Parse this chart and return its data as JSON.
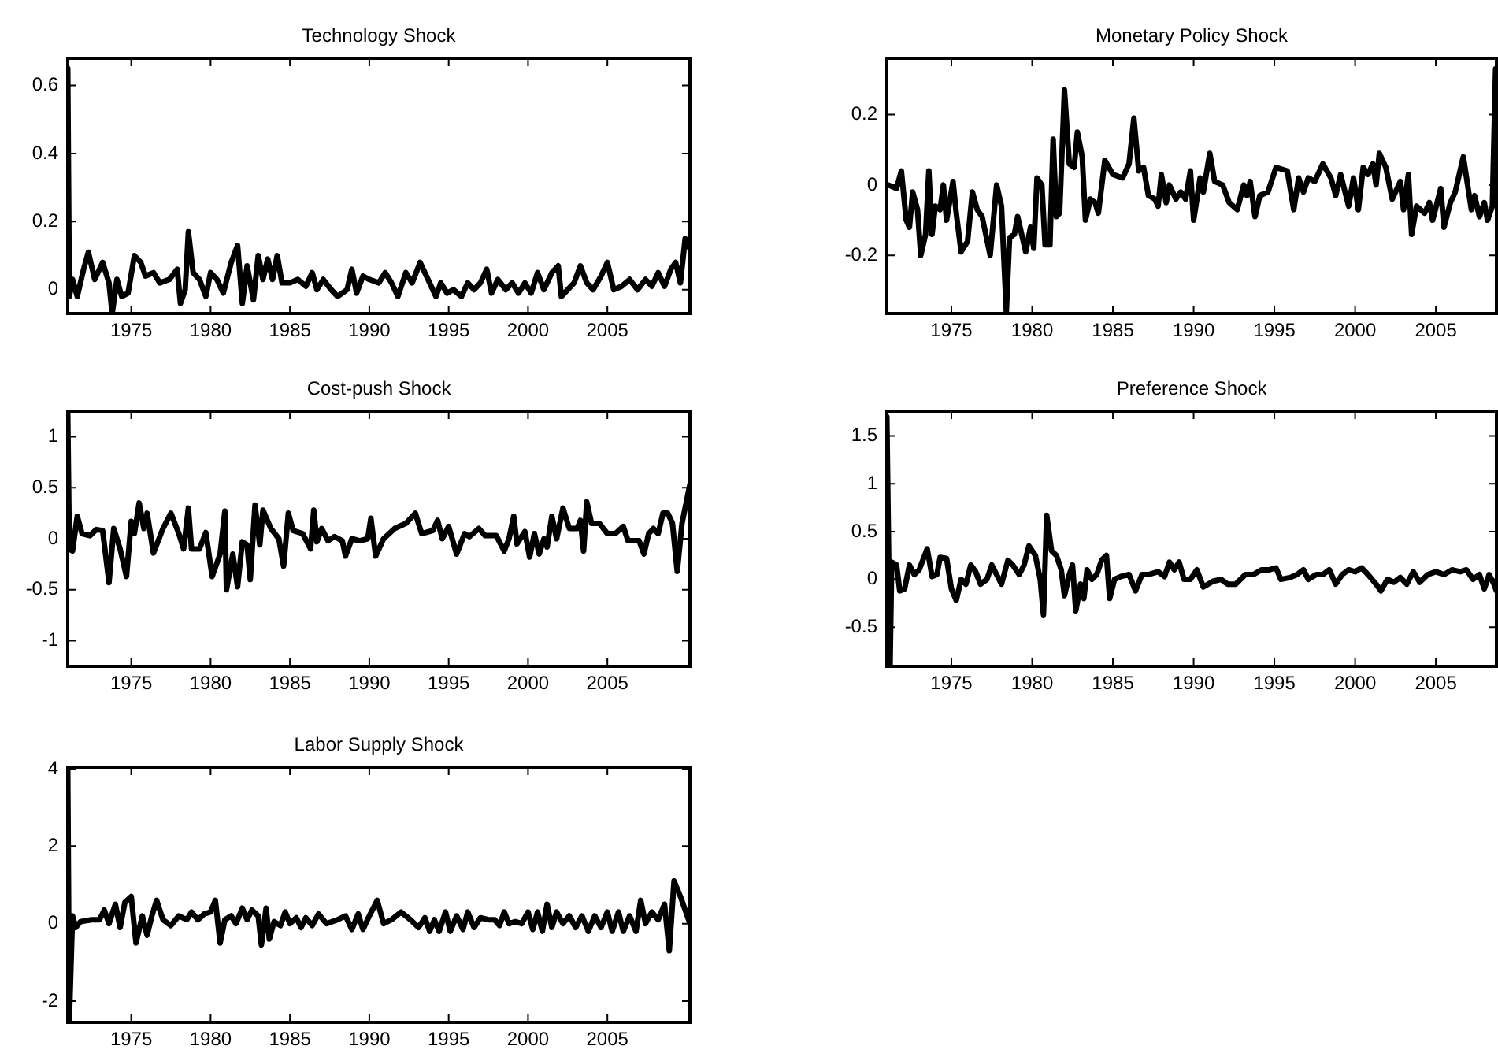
{
  "chart_data": [
    {
      "type": "line",
      "title": "Technology Shock",
      "xlim": [
        1971,
        2010.2
      ],
      "ylim": [
        -0.07,
        0.68
      ],
      "xticks": [
        1975,
        1980,
        1985,
        1990,
        1995,
        2000,
        2005
      ],
      "yticks": [
        0,
        0.2,
        0.4,
        0.6
      ],
      "grid": false,
      "line_style": "solid",
      "x": [
        1971.0,
        1971.1,
        1971.3,
        1971.6,
        1972.0,
        1972.3,
        1972.7,
        1973.2,
        1973.6,
        1973.8,
        1974.1,
        1974.4,
        1974.8,
        1975.2,
        1975.6,
        1975.9,
        1976.4,
        1976.8,
        1977.4,
        1977.9,
        1978.1,
        1978.4,
        1978.6,
        1978.9,
        1979.3,
        1979.7,
        1980.0,
        1980.4,
        1980.8,
        1981.3,
        1981.7,
        1982.0,
        1982.3,
        1982.7,
        1983.0,
        1983.3,
        1983.6,
        1983.9,
        1984.2,
        1984.5,
        1985.0,
        1985.5,
        1986.0,
        1986.4,
        1986.7,
        1987.1,
        1987.6,
        1988.0,
        1988.6,
        1988.9,
        1989.2,
        1989.6,
        1990.0,
        1990.6,
        1991.0,
        1991.4,
        1991.8,
        1992.3,
        1992.7,
        1993.2,
        1993.6,
        1994.2,
        1994.5,
        1994.9,
        1995.3,
        1995.8,
        1996.2,
        1996.6,
        1997.0,
        1997.4,
        1997.7,
        1998.1,
        1998.6,
        1999.0,
        1999.4,
        1999.8,
        2000.2,
        2000.6,
        2001.0,
        2001.5,
        2001.9,
        2002.1,
        2002.5,
        2002.9,
        2003.3,
        2003.7,
        2004.1,
        2004.6,
        2005.0,
        2005.4,
        2005.9,
        2006.4,
        2006.9,
        2007.4,
        2007.8,
        2008.2,
        2008.6,
        2009.0,
        2009.3,
        2009.6,
        2009.9,
        2010.2
      ],
      "series": [
        {
          "color": "#000000",
          "values": [
            0.65,
            -0.02,
            0.03,
            -0.02,
            0.06,
            0.11,
            0.03,
            0.08,
            0.02,
            -0.07,
            0.03,
            -0.02,
            -0.01,
            0.1,
            0.08,
            0.04,
            0.05,
            0.02,
            0.03,
            0.06,
            -0.04,
            0.0,
            0.17,
            0.05,
            0.03,
            -0.02,
            0.05,
            0.03,
            -0.01,
            0.08,
            0.13,
            -0.04,
            0.07,
            -0.03,
            0.1,
            0.03,
            0.09,
            0.03,
            0.1,
            0.02,
            0.02,
            0.03,
            0.01,
            0.05,
            0.0,
            0.03,
            0.0,
            -0.02,
            0.0,
            0.06,
            -0.01,
            0.04,
            0.03,
            0.02,
            0.05,
            0.02,
            -0.02,
            0.05,
            0.02,
            0.08,
            0.04,
            -0.02,
            0.02,
            -0.01,
            0.0,
            -0.02,
            0.02,
            0.0,
            0.02,
            0.06,
            -0.01,
            0.03,
            0.0,
            0.02,
            -0.01,
            0.02,
            -0.01,
            0.05,
            0.0,
            0.05,
            0.07,
            -0.02,
            0.0,
            0.02,
            0.07,
            0.02,
            0.0,
            0.04,
            0.08,
            0.0,
            0.01,
            0.03,
            0.0,
            0.03,
            0.01,
            0.05,
            0.01,
            0.06,
            0.08,
            0.02,
            0.15,
            0.12
          ]
        }
      ]
    },
    {
      "type": "line",
      "title": "Monetary Policy Shock",
      "xlim": [
        1971,
        2008.75
      ],
      "ylim": [
        -0.365,
        0.36
      ],
      "xticks": [
        1975,
        1980,
        1985,
        1990,
        1995,
        2000,
        2005
      ],
      "yticks": [
        -0.2,
        0,
        0.2
      ],
      "grid": false,
      "line_style": "solid",
      "x": [
        1971.1,
        1971.6,
        1971.9,
        1972.2,
        1972.4,
        1972.6,
        1972.9,
        1973.1,
        1973.4,
        1973.6,
        1973.8,
        1974.0,
        1974.3,
        1974.5,
        1974.7,
        1975.1,
        1975.3,
        1975.6,
        1976.0,
        1976.3,
        1976.6,
        1976.9,
        1977.4,
        1977.8,
        1978.1,
        1978.4,
        1978.6,
        1978.9,
        1979.1,
        1979.4,
        1979.6,
        1979.9,
        1980.1,
        1980.3,
        1980.6,
        1980.8,
        1981.1,
        1981.3,
        1981.5,
        1981.7,
        1982.0,
        1982.3,
        1982.6,
        1982.8,
        1983.1,
        1983.3,
        1983.6,
        1983.9,
        1984.1,
        1984.5,
        1985.0,
        1985.6,
        1986.0,
        1986.3,
        1986.6,
        1986.9,
        1987.2,
        1987.6,
        1987.8,
        1988.0,
        1988.3,
        1988.5,
        1988.9,
        1989.2,
        1989.5,
        1989.8,
        1990.0,
        1990.4,
        1990.6,
        1991.0,
        1991.3,
        1991.8,
        1992.2,
        1992.7,
        1993.1,
        1993.3,
        1993.5,
        1993.8,
        1994.1,
        1994.6,
        1995.1,
        1995.8,
        1996.2,
        1996.5,
        1996.8,
        1997.1,
        1997.5,
        1998.0,
        1998.5,
        1998.8,
        1999.1,
        1999.6,
        1999.9,
        2000.2,
        2000.5,
        2000.8,
        2001.1,
        2001.3,
        2001.5,
        2001.9,
        2002.3,
        2002.8,
        2003.0,
        2003.3,
        2003.5,
        2003.8,
        2004.3,
        2004.6,
        2004.8,
        2005.3,
        2005.5,
        2005.9,
        2006.2,
        2006.7,
        2007.2,
        2007.4,
        2007.7,
        2008.0,
        2008.2,
        2008.5,
        2008.7
      ],
      "series": [
        {
          "color": "#000000",
          "values": [
            0.0,
            -0.01,
            0.04,
            -0.1,
            -0.12,
            -0.02,
            -0.07,
            -0.2,
            -0.14,
            0.04,
            -0.14,
            -0.06,
            -0.07,
            0.0,
            -0.1,
            0.01,
            -0.08,
            -0.19,
            -0.16,
            -0.02,
            -0.07,
            -0.09,
            -0.2,
            0.0,
            -0.06,
            -0.36,
            -0.15,
            -0.14,
            -0.09,
            -0.15,
            -0.19,
            -0.12,
            -0.18,
            0.02,
            0.0,
            -0.17,
            -0.17,
            0.13,
            -0.09,
            -0.08,
            0.27,
            0.06,
            0.05,
            0.15,
            0.08,
            -0.1,
            -0.04,
            -0.05,
            -0.08,
            0.07,
            0.03,
            0.02,
            0.06,
            0.19,
            0.04,
            0.05,
            -0.03,
            -0.04,
            -0.06,
            0.03,
            -0.05,
            0.0,
            -0.04,
            -0.02,
            -0.04,
            0.04,
            -0.1,
            0.02,
            -0.02,
            0.09,
            0.01,
            0.0,
            -0.05,
            -0.07,
            0.0,
            -0.03,
            0.01,
            -0.09,
            -0.03,
            -0.02,
            0.05,
            0.04,
            -0.07,
            0.02,
            -0.02,
            0.02,
            0.01,
            0.06,
            0.02,
            -0.03,
            0.03,
            -0.06,
            0.02,
            -0.07,
            0.05,
            0.03,
            0.06,
            0.0,
            0.09,
            0.05,
            -0.04,
            0.01,
            -0.07,
            0.03,
            -0.14,
            -0.06,
            -0.08,
            -0.05,
            -0.1,
            -0.01,
            -0.12,
            -0.05,
            -0.02,
            0.08,
            -0.07,
            -0.03,
            -0.09,
            -0.05,
            -0.1,
            -0.06,
            0.33
          ]
        }
      ]
    },
    {
      "type": "line",
      "title": "Cost-push Shock",
      "xlim": [
        1971,
        2010.2
      ],
      "ylim": [
        -1.25,
        1.25
      ],
      "xticks": [
        1975,
        1980,
        1985,
        1990,
        1995,
        2000,
        2005
      ],
      "yticks": [
        -1,
        -0.5,
        0,
        0.5,
        1
      ],
      "grid": false,
      "line_style": "solid",
      "x": [
        1971.0,
        1971.1,
        1971.3,
        1971.6,
        1971.9,
        1972.4,
        1972.8,
        1973.2,
        1973.6,
        1973.9,
        1974.3,
        1974.7,
        1975.0,
        1975.2,
        1975.5,
        1975.8,
        1976.0,
        1976.4,
        1977.0,
        1977.5,
        1978.0,
        1978.3,
        1978.6,
        1978.8,
        1979.3,
        1979.7,
        1980.1,
        1980.6,
        1980.9,
        1981.0,
        1981.4,
        1981.7,
        1982.0,
        1982.3,
        1982.5,
        1982.8,
        1983.1,
        1983.3,
        1983.8,
        1984.3,
        1984.6,
        1984.9,
        1985.2,
        1985.8,
        1986.3,
        1986.5,
        1986.7,
        1987.0,
        1987.4,
        1987.8,
        1988.3,
        1988.5,
        1988.9,
        1989.4,
        1989.9,
        1990.1,
        1990.4,
        1990.9,
        1991.6,
        1992.3,
        1992.9,
        1993.3,
        1994.0,
        1994.3,
        1994.6,
        1995.0,
        1995.5,
        1996.0,
        1996.3,
        1996.9,
        1997.3,
        1998.0,
        1998.5,
        1998.8,
        1999.1,
        1999.3,
        1999.8,
        2000.1,
        2000.4,
        2000.7,
        2001.0,
        2001.2,
        2001.5,
        2001.8,
        2002.2,
        2002.6,
        2003.1,
        2003.3,
        2003.5,
        2003.7,
        2004.0,
        2004.5,
        2005.0,
        2005.5,
        2006.0,
        2006.3,
        2007.0,
        2007.3,
        2007.6,
        2007.9,
        2008.2,
        2008.5,
        2008.8,
        2009.1,
        2009.4,
        2009.7,
        2010.2
      ],
      "series": [
        {
          "color": "#000000",
          "values": [
            1.24,
            -0.1,
            -0.12,
            0.22,
            0.05,
            0.03,
            0.09,
            0.08,
            -0.43,
            0.1,
            -0.1,
            -0.37,
            0.17,
            0.05,
            0.35,
            0.1,
            0.25,
            -0.14,
            0.1,
            0.25,
            0.05,
            -0.1,
            0.3,
            -0.1,
            -0.1,
            0.06,
            -0.37,
            -0.15,
            0.27,
            -0.5,
            -0.15,
            -0.47,
            -0.03,
            -0.06,
            -0.4,
            0.33,
            -0.06,
            0.28,
            0.1,
            0.0,
            -0.27,
            0.25,
            0.08,
            0.05,
            -0.1,
            0.28,
            -0.03,
            0.1,
            -0.02,
            0.02,
            -0.02,
            -0.17,
            0.0,
            -0.02,
            0.0,
            0.2,
            -0.17,
            0.0,
            0.1,
            0.15,
            0.25,
            0.05,
            0.08,
            0.18,
            0.0,
            0.12,
            -0.15,
            0.05,
            0.02,
            0.1,
            0.03,
            0.03,
            -0.12,
            0.0,
            0.22,
            -0.05,
            0.07,
            -0.18,
            0.05,
            -0.15,
            0.0,
            -0.08,
            0.22,
            0.0,
            0.3,
            0.1,
            0.1,
            0.18,
            -0.12,
            0.36,
            0.15,
            0.15,
            0.05,
            0.05,
            0.12,
            -0.02,
            -0.02,
            -0.15,
            0.05,
            0.1,
            0.05,
            0.25,
            0.25,
            0.15,
            -0.32,
            0.15,
            0.53
          ]
        }
      ]
    },
    {
      "type": "line",
      "title": "Preference Shock",
      "xlim": [
        1971,
        2008.75
      ],
      "ylim": [
        -0.91,
        1.76
      ],
      "xticks": [
        1975,
        1980,
        1985,
        1990,
        1995,
        2000,
        2005
      ],
      "yticks": [
        -0.5,
        0,
        0.5,
        1,
        1.5
      ],
      "grid": false,
      "line_style": "solid",
      "x": [
        1971.0,
        1971.2,
        1971.3,
        1971.6,
        1971.8,
        1972.1,
        1972.4,
        1972.7,
        1973.0,
        1973.5,
        1973.8,
        1974.1,
        1974.3,
        1974.7,
        1975.0,
        1975.3,
        1975.6,
        1975.9,
        1976.2,
        1976.5,
        1976.8,
        1977.2,
        1977.5,
        1977.8,
        1978.1,
        1978.5,
        1978.8,
        1979.2,
        1979.5,
        1979.8,
        1980.2,
        1980.5,
        1980.7,
        1980.9,
        1981.2,
        1981.5,
        1981.8,
        1982.0,
        1982.3,
        1982.5,
        1982.7,
        1983.0,
        1983.2,
        1983.4,
        1983.7,
        1984.0,
        1984.3,
        1984.6,
        1984.8,
        1985.1,
        1985.5,
        1986.0,
        1986.4,
        1986.8,
        1987.2,
        1987.8,
        1988.2,
        1988.5,
        1988.8,
        1989.1,
        1989.4,
        1989.8,
        1990.2,
        1990.6,
        1991.2,
        1991.7,
        1992.1,
        1992.6,
        1993.2,
        1993.7,
        1994.2,
        1994.7,
        1995.1,
        1995.4,
        1996.0,
        1996.4,
        1996.8,
        1997.1,
        1997.6,
        1998.0,
        1998.4,
        1998.8,
        1999.2,
        1999.6,
        2000.0,
        2000.4,
        2000.8,
        2001.3,
        2001.6,
        2002.0,
        2002.4,
        2002.8,
        2003.2,
        2003.6,
        2004.0,
        2004.5,
        2005.0,
        2005.5,
        2006.0,
        2006.5,
        2006.9,
        2007.3,
        2007.7,
        2008.0,
        2008.3,
        2008.6,
        2008.75
      ],
      "series": [
        {
          "color": "#000000",
          "values": [
            1.7,
            -0.9,
            0.18,
            0.15,
            -0.12,
            -0.1,
            0.15,
            0.05,
            0.1,
            0.32,
            0.03,
            0.05,
            0.23,
            0.22,
            -0.1,
            -0.22,
            0.0,
            -0.05,
            0.15,
            0.08,
            -0.05,
            0.0,
            0.15,
            0.05,
            -0.05,
            0.2,
            0.15,
            0.05,
            0.15,
            0.35,
            0.25,
            0.0,
            -0.37,
            0.67,
            0.3,
            0.25,
            0.1,
            -0.17,
            0.05,
            0.15,
            -0.33,
            -0.05,
            -0.2,
            0.1,
            0.0,
            0.05,
            0.2,
            0.25,
            -0.2,
            0.0,
            0.03,
            0.05,
            -0.12,
            0.05,
            0.05,
            0.08,
            0.03,
            0.18,
            0.1,
            0.18,
            0.0,
            0.0,
            0.1,
            -0.08,
            -0.02,
            0.0,
            -0.05,
            -0.05,
            0.05,
            0.05,
            0.1,
            0.1,
            0.12,
            0.0,
            0.02,
            0.05,
            0.1,
            0.0,
            0.05,
            0.05,
            0.1,
            -0.05,
            0.05,
            0.1,
            0.08,
            0.12,
            0.05,
            -0.05,
            -0.12,
            0.0,
            -0.03,
            0.02,
            -0.05,
            0.08,
            -0.03,
            0.05,
            0.08,
            0.05,
            0.1,
            0.08,
            0.1,
            0.0,
            0.05,
            -0.1,
            0.05,
            -0.05,
            -0.12
          ]
        }
      ]
    },
    {
      "type": "line",
      "title": "Labor Supply Shock",
      "xlim": [
        1971,
        2010.2
      ],
      "ylim": [
        -2.55,
        4.04
      ],
      "xticks": [
        1975,
        1980,
        1985,
        1990,
        1995,
        2000,
        2005
      ],
      "yticks": [
        -2,
        0,
        2,
        4
      ],
      "grid": false,
      "line_style": "solid",
      "x": [
        1971.0,
        1971.1,
        1971.3,
        1971.5,
        1971.8,
        1972.5,
        1973.0,
        1973.3,
        1973.6,
        1974.0,
        1974.3,
        1974.6,
        1975.0,
        1975.3,
        1975.7,
        1976.0,
        1976.3,
        1976.6,
        1977.0,
        1977.5,
        1978.0,
        1978.5,
        1978.8,
        1979.2,
        1979.6,
        1980.0,
        1980.3,
        1980.6,
        1980.9,
        1981.3,
        1981.6,
        1982.0,
        1982.3,
        1982.6,
        1983.0,
        1983.2,
        1983.5,
        1983.7,
        1984.0,
        1984.4,
        1984.7,
        1985.0,
        1985.4,
        1985.7,
        1986.0,
        1986.4,
        1986.8,
        1987.3,
        1988.0,
        1988.5,
        1988.9,
        1989.3,
        1989.6,
        1990.0,
        1990.5,
        1990.9,
        1991.4,
        1992.0,
        1992.6,
        1993.1,
        1993.5,
        1993.8,
        1994.1,
        1994.4,
        1994.8,
        1995.1,
        1995.5,
        1995.9,
        1996.2,
        1996.6,
        1997.0,
        1997.5,
        1997.9,
        1998.2,
        1998.5,
        1998.8,
        1999.2,
        1999.6,
        2000.0,
        2000.3,
        2000.6,
        2000.9,
        2001.2,
        2001.5,
        2001.8,
        2002.2,
        2002.6,
        2003.0,
        2003.4,
        2003.8,
        2004.2,
        2004.6,
        2005.0,
        2005.3,
        2005.7,
        2006.0,
        2006.4,
        2006.8,
        2007.1,
        2007.4,
        2007.8,
        2008.2,
        2008.6,
        2008.9,
        2009.2,
        2009.6,
        2010.2
      ],
      "series": [
        {
          "color": "#000000",
          "values": [
            4.0,
            -2.5,
            0.2,
            -0.1,
            0.05,
            0.1,
            0.1,
            0.35,
            0.0,
            0.5,
            -0.1,
            0.55,
            0.7,
            -0.5,
            0.2,
            -0.3,
            0.2,
            0.6,
            0.1,
            -0.05,
            0.2,
            0.1,
            0.3,
            0.1,
            0.25,
            0.3,
            0.6,
            -0.5,
            0.1,
            0.2,
            0.0,
            0.4,
            0.1,
            0.35,
            0.2,
            -0.55,
            0.4,
            -0.4,
            0.05,
            -0.05,
            0.3,
            0.0,
            0.15,
            -0.1,
            0.15,
            -0.05,
            0.25,
            0.0,
            0.1,
            0.2,
            -0.15,
            0.25,
            -0.15,
            0.2,
            0.6,
            0.0,
            0.1,
            0.3,
            0.1,
            -0.1,
            0.15,
            -0.2,
            0.1,
            -0.2,
            0.3,
            -0.2,
            0.2,
            -0.15,
            0.3,
            -0.1,
            0.15,
            0.1,
            0.1,
            -0.05,
            0.3,
            0.0,
            0.05,
            0.0,
            0.3,
            -0.15,
            0.3,
            -0.2,
            0.5,
            -0.1,
            0.3,
            0.0,
            0.2,
            -0.1,
            0.2,
            -0.2,
            0.2,
            -0.1,
            0.3,
            -0.2,
            0.3,
            -0.2,
            0.2,
            -0.2,
            0.6,
            0.0,
            0.3,
            0.1,
            0.5,
            -0.7,
            1.1,
            0.7,
            0.0
          ]
        }
      ]
    }
  ]
}
